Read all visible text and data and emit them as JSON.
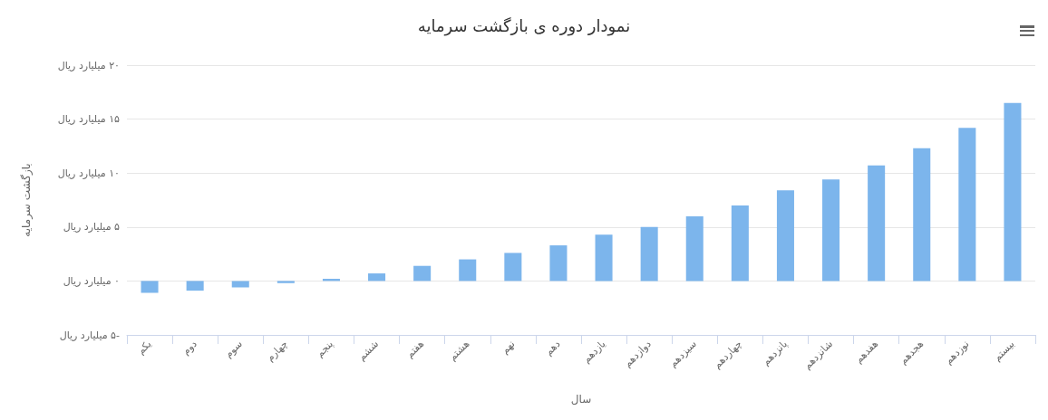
{
  "chart_data": {
    "type": "bar",
    "title": "نمودار دوره ی بازگشت سرمایه",
    "xlabel": "سال",
    "ylabel": "بازگشت سرمایه",
    "categories": [
      "یکم",
      "دوم",
      "سوم",
      "چهارم",
      "پنجم",
      "ششم",
      "هفتم",
      "هشتم",
      "نهم",
      "دهم",
      "یازدهم",
      "دوازدهم",
      "سیزدهم",
      "چهاردهم",
      "پانزدهم",
      "شانزدهم",
      "هفدهم",
      "هجدهم",
      "نوزدهم",
      "بیستم"
    ],
    "values": [
      -1.1,
      -0.9,
      -0.6,
      -0.2,
      0.2,
      0.7,
      1.4,
      2.0,
      2.6,
      3.3,
      4.3,
      5.0,
      6.0,
      7.0,
      8.4,
      9.4,
      10.7,
      12.3,
      14.2,
      16.5
    ],
    "color": "#7cb5ec",
    "ylim": [
      -5,
      20
    ],
    "yticks": [
      {
        "value": -5,
        "label": "-۵ میلیارد ریال"
      },
      {
        "value": 0,
        "label": "۰ میلیارد ریال"
      },
      {
        "value": 5,
        "label": "۵ میلیارد ریال"
      },
      {
        "value": 10,
        "label": "۱۰ میلیارد ریال"
      },
      {
        "value": 15,
        "label": "۱۵ میلیارد ریال"
      },
      {
        "value": 20,
        "label": "۲۰ میلیارد ریال"
      }
    ],
    "grid": "y"
  }
}
